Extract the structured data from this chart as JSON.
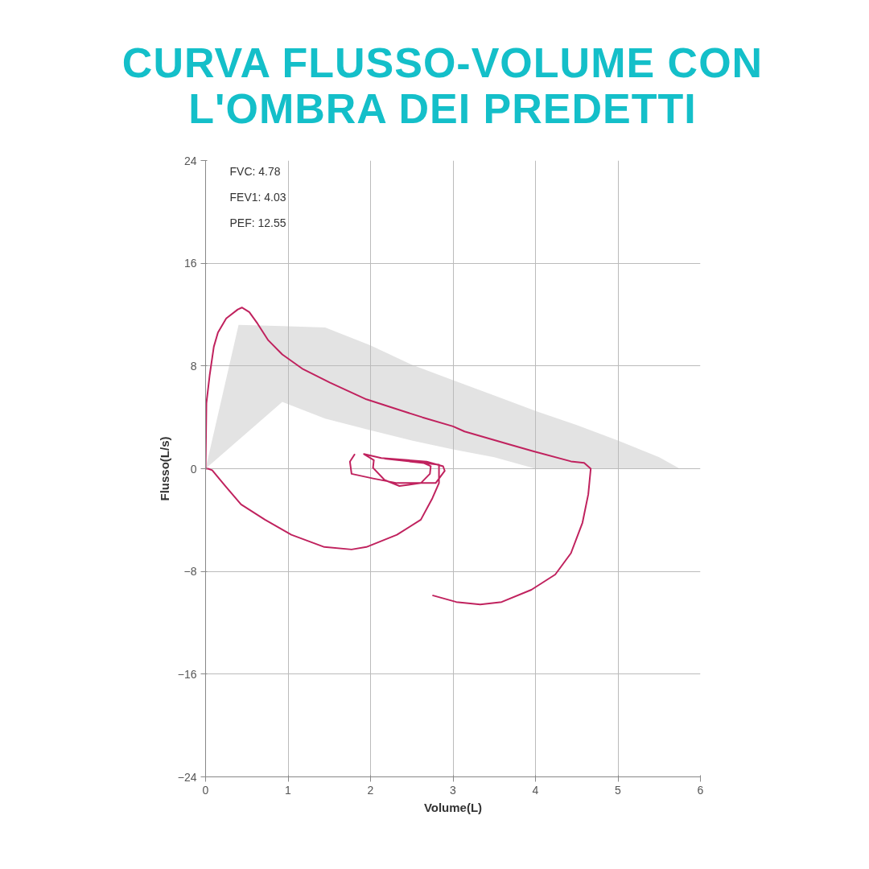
{
  "chart_data": {
    "type": "line",
    "title": "CURVA FLUSSO-VOLUME CON L'OMBRA DEI PREDETTI",
    "xlabel": "Volume(L)",
    "ylabel": "Flusso(L/s)",
    "xlim": [
      0,
      6
    ],
    "xticks": [
      0,
      1,
      2,
      3,
      4,
      5,
      6
    ],
    "ylim": [
      -24,
      24
    ],
    "yticks": [
      -24,
      -16,
      -8,
      0,
      8,
      16,
      24
    ],
    "grid": true,
    "marker": "none",
    "line_style": "solid",
    "annotations": [
      "FVC: 4.78",
      "FEV1: 4.03",
      "PEF: 12.55"
    ],
    "series": [
      {
        "type": "area",
        "color": "#e3e3e3",
        "x": [
          0,
          0.4,
          0.93,
          1.45,
          2,
          2.5,
          3,
          3.5,
          4,
          4.5,
          5,
          5.5,
          5.75,
          4,
          3.5,
          3,
          2.5,
          2,
          1.45,
          0.93,
          0
        ],
        "values": [
          0,
          11.2,
          11.1,
          11.0,
          9.6,
          8.1,
          6.9,
          5.7,
          4.5,
          3.4,
          2.2,
          0.9,
          0,
          0,
          0.9,
          1.5,
          2.2,
          3.0,
          3.9,
          5.2,
          0
        ]
      },
      {
        "color": "#c0225e",
        "x": [
          1.81,
          1.75,
          1.77,
          2.03,
          2.32,
          2.79,
          2.9,
          2.88,
          2.68,
          2.13,
          1.92,
          2.04,
          2.03,
          2.17,
          2.35,
          2.61,
          2.72,
          2.73,
          2.61,
          2.17,
          2.83,
          2.83,
          2.75,
          2.61,
          2.32,
          1.95,
          1.77,
          1.44,
          1.04,
          0.72,
          0.43,
          0.24,
          0.08,
          0.03,
          0,
          0.01,
          0.05,
          0.1,
          0.15,
          0.25,
          0.39,
          0.44,
          0.53,
          0.63,
          0.76,
          0.93,
          1.17,
          1.51,
          1.95,
          2.29,
          2.63,
          3.0,
          3.14,
          3.68,
          3.98,
          4.43,
          4.59,
          4.67,
          4.64,
          4.57,
          4.43,
          4.24,
          3.95,
          3.59,
          3.33,
          3.04,
          2.75
        ],
        "values": [
          1.14,
          0.55,
          -0.4,
          -0.76,
          -1.12,
          -1.12,
          -0.17,
          0.19,
          0.55,
          0.83,
          1.14,
          0.67,
          0.07,
          -0.88,
          -1.35,
          -1.12,
          -0.4,
          0.19,
          0.55,
          0.78,
          0.31,
          -1.12,
          -2.3,
          -3.97,
          -5.15,
          -6.1,
          -6.29,
          -6.1,
          -5.15,
          -3.97,
          -2.78,
          -1.35,
          -0.12,
          0,
          0,
          5.1,
          7.3,
          9.5,
          10.6,
          11.7,
          12.4,
          12.55,
          12.2,
          11.3,
          10.0,
          8.9,
          7.8,
          6.7,
          5.4,
          4.7,
          4.0,
          3.3,
          2.9,
          1.9,
          1.35,
          0.57,
          0.45,
          0,
          -2.0,
          -4.2,
          -6.58,
          -8.24,
          -9.43,
          -10.38,
          -10.57,
          -10.38,
          -9.86
        ]
      }
    ]
  }
}
